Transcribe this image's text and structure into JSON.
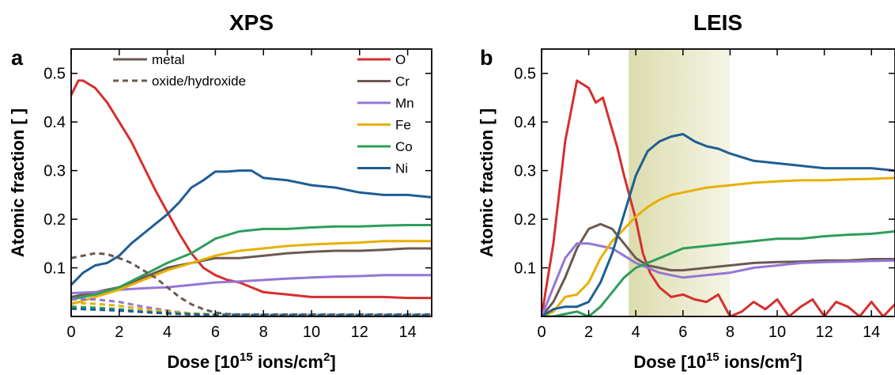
{
  "chart_data": [
    {
      "panel": "a",
      "title": "XPS",
      "type": "line",
      "xlabel_text": "Dose [10",
      "xlabel_exp": "15",
      "xlabel_mid": " ions/cm",
      "xlabel_exp2": "2",
      "xlabel_end": "]",
      "ylabel": "Atomic fraction [ ]",
      "xlim": [
        0,
        15
      ],
      "ylim": [
        0,
        0.55
      ],
      "xticks": [
        0,
        2,
        4,
        6,
        8,
        10,
        12,
        14
      ],
      "yticks": [
        0.1,
        0.2,
        0.3,
        0.4,
        0.5
      ],
      "legend_styles": [
        {
          "label": "metal",
          "dash": "solid"
        },
        {
          "label": "oxide/hydroxide",
          "dash": "dashed"
        }
      ],
      "legend_position": "top-right",
      "series": [
        {
          "name": "O",
          "color": "#d62f2f",
          "dash": "solid",
          "x": [
            0,
            0.3,
            0.5,
            1,
            1.5,
            2,
            2.5,
            3,
            3.5,
            4,
            4.5,
            5,
            5.5,
            6,
            6.5,
            7,
            7.5,
            8,
            9,
            10,
            11,
            12,
            13,
            14,
            15
          ],
          "y": [
            0.455,
            0.485,
            0.485,
            0.47,
            0.44,
            0.4,
            0.36,
            0.31,
            0.26,
            0.215,
            0.17,
            0.13,
            0.1,
            0.085,
            0.075,
            0.07,
            0.06,
            0.05,
            0.045,
            0.04,
            0.04,
            0.04,
            0.04,
            0.038,
            0.038
          ]
        },
        {
          "name": "Cr",
          "color": "#6b5a52",
          "dash": "solid",
          "x": [
            0,
            1,
            2,
            3,
            4,
            5,
            6,
            7,
            8,
            9,
            10,
            11,
            12,
            13,
            14,
            15
          ],
          "y": [
            0.04,
            0.05,
            0.06,
            0.08,
            0.1,
            0.11,
            0.12,
            0.12,
            0.125,
            0.13,
            0.133,
            0.135,
            0.135,
            0.137,
            0.14,
            0.14
          ]
        },
        {
          "name": "Mn",
          "color": "#9476d6",
          "dash": "solid",
          "x": [
            0,
            1,
            2,
            3,
            4,
            5,
            6,
            7,
            8,
            9,
            10,
            11,
            12,
            13,
            14,
            15
          ],
          "y": [
            0.048,
            0.05,
            0.055,
            0.058,
            0.06,
            0.065,
            0.07,
            0.072,
            0.075,
            0.078,
            0.08,
            0.082,
            0.083,
            0.085,
            0.085,
            0.085
          ]
        },
        {
          "name": "Fe",
          "color": "#e8b000",
          "dash": "solid",
          "x": [
            0,
            1,
            2,
            3,
            4,
            5,
            6,
            7,
            8,
            9,
            10,
            11,
            12,
            13,
            14,
            15
          ],
          "y": [
            0.025,
            0.04,
            0.055,
            0.075,
            0.095,
            0.11,
            0.125,
            0.135,
            0.14,
            0.145,
            0.148,
            0.15,
            0.152,
            0.155,
            0.155,
            0.155
          ]
        },
        {
          "name": "Co",
          "color": "#2e9e5b",
          "dash": "solid",
          "x": [
            0,
            1,
            2,
            3,
            4,
            5,
            6,
            7,
            8,
            9,
            10,
            11,
            12,
            13,
            14,
            15
          ],
          "y": [
            0.035,
            0.045,
            0.06,
            0.085,
            0.11,
            0.13,
            0.16,
            0.175,
            0.18,
            0.18,
            0.183,
            0.185,
            0.185,
            0.187,
            0.188,
            0.188
          ]
        },
        {
          "name": "Ni",
          "color": "#1f5e94",
          "dash": "solid",
          "x": [
            0,
            0.5,
            1,
            1.5,
            2,
            2.5,
            3,
            3.5,
            4,
            4.5,
            5,
            5.5,
            6,
            6.5,
            7,
            7.5,
            8,
            9,
            10,
            11,
            12,
            13,
            14,
            15
          ],
          "y": [
            0.065,
            0.09,
            0.105,
            0.11,
            0.125,
            0.15,
            0.17,
            0.19,
            0.21,
            0.235,
            0.265,
            0.28,
            0.298,
            0.298,
            0.3,
            0.3,
            0.285,
            0.28,
            0.27,
            0.265,
            0.255,
            0.25,
            0.25,
            0.245
          ]
        },
        {
          "name": "Cr oxide",
          "color": "#6b5a52",
          "dash": "dashed",
          "x": [
            0,
            0.5,
            1,
            1.5,
            2,
            2.5,
            3,
            3.5,
            4,
            4.5,
            5,
            5.5,
            6,
            6.5,
            7,
            8,
            15
          ],
          "y": [
            0.12,
            0.125,
            0.13,
            0.128,
            0.12,
            0.11,
            0.095,
            0.08,
            0.06,
            0.04,
            0.025,
            0.015,
            0.008,
            0.005,
            0.004,
            0.004,
            0.004
          ]
        },
        {
          "name": "Mn oxide",
          "color": "#9476d6",
          "dash": "dashed",
          "x": [
            0,
            1,
            2,
            3,
            4,
            5,
            6,
            8,
            15
          ],
          "y": [
            0.035,
            0.035,
            0.03,
            0.02,
            0.012,
            0.006,
            0.004,
            0.003,
            0.003
          ]
        },
        {
          "name": "Fe oxide",
          "color": "#e8b000",
          "dash": "dashed",
          "x": [
            0,
            1,
            2,
            3,
            4,
            5,
            6,
            8,
            15
          ],
          "y": [
            0.028,
            0.026,
            0.022,
            0.015,
            0.01,
            0.006,
            0.004,
            0.003,
            0.003
          ]
        },
        {
          "name": "Co oxide",
          "color": "#2e9e5b",
          "dash": "dashed",
          "x": [
            0,
            1,
            2,
            3,
            4,
            5,
            6,
            8,
            15
          ],
          "y": [
            0.02,
            0.018,
            0.015,
            0.01,
            0.007,
            0.005,
            0.004,
            0.003,
            0.003
          ]
        },
        {
          "name": "Ni oxide",
          "color": "#1f5e94",
          "dash": "dashed",
          "x": [
            0,
            1,
            2,
            3,
            4,
            5,
            6,
            8,
            15
          ],
          "y": [
            0.016,
            0.014,
            0.012,
            0.009,
            0.006,
            0.004,
            0.003,
            0.003,
            0.003
          ]
        }
      ]
    },
    {
      "panel": "b",
      "title": "LEIS",
      "type": "line",
      "xlabel_text": "Dose [10",
      "xlabel_exp": "15",
      "xlabel_mid": " ions/cm",
      "xlabel_exp2": "2",
      "xlabel_end": "]",
      "ylabel": "Atomic fraction [ ]",
      "xlim": [
        0,
        15
      ],
      "ylim": [
        0,
        0.55
      ],
      "xticks": [
        0,
        2,
        4,
        6,
        8,
        10,
        12,
        14
      ],
      "yticks": [
        0.1,
        0.2,
        0.3,
        0.4,
        0.5
      ],
      "shaded_region": {
        "x": [
          3.7,
          8.0
        ],
        "color_start": "#dcdcae",
        "color_end": "#f5f5e6"
      },
      "series": [
        {
          "name": "O",
          "color": "#d62f2f",
          "x": [
            0,
            0.5,
            1,
            1.5,
            2,
            2.3,
            2.6,
            2.9,
            3.2,
            3.5,
            4,
            4.3,
            4.6,
            5,
            5.5,
            6,
            6.5,
            7,
            7.5,
            8,
            8.5,
            9,
            9.5,
            10,
            10.5,
            11,
            11.5,
            12,
            12.5,
            13,
            13.5,
            14,
            14.5,
            15
          ],
          "y": [
            0.0,
            0.15,
            0.36,
            0.485,
            0.47,
            0.44,
            0.45,
            0.4,
            0.35,
            0.29,
            0.2,
            0.13,
            0.09,
            0.06,
            0.04,
            0.045,
            0.035,
            0.03,
            0.045,
            0.0,
            0.01,
            0.03,
            0.015,
            0.035,
            0.0,
            0.02,
            0.035,
            0.0,
            0.03,
            0.02,
            0.0,
            0.03,
            0.0,
            0.025
          ]
        },
        {
          "name": "Cr",
          "color": "#6b5a52",
          "x": [
            0,
            0.5,
            1,
            1.5,
            2,
            2.5,
            3,
            3.5,
            4,
            4.5,
            5,
            5.5,
            6,
            7,
            8,
            9,
            10,
            11,
            12,
            13,
            14,
            15
          ],
          "y": [
            0.0,
            0.03,
            0.08,
            0.14,
            0.18,
            0.19,
            0.18,
            0.15,
            0.12,
            0.105,
            0.1,
            0.095,
            0.095,
            0.1,
            0.105,
            0.11,
            0.112,
            0.113,
            0.115,
            0.115,
            0.118,
            0.118
          ]
        },
        {
          "name": "Mn",
          "color": "#9476d6",
          "x": [
            0,
            0.5,
            1,
            1.5,
            2,
            2.5,
            3,
            3.5,
            4,
            4.5,
            5,
            5.5,
            6,
            7,
            8,
            9,
            10,
            11,
            12,
            13,
            14,
            15
          ],
          "y": [
            0.0,
            0.06,
            0.12,
            0.15,
            0.15,
            0.145,
            0.14,
            0.125,
            0.11,
            0.1,
            0.09,
            0.085,
            0.08,
            0.085,
            0.09,
            0.1,
            0.105,
            0.11,
            0.112,
            0.113,
            0.114,
            0.115
          ]
        },
        {
          "name": "Fe",
          "color": "#e8b000",
          "x": [
            0,
            0.5,
            1,
            1.5,
            2,
            2.5,
            3,
            3.5,
            4,
            4.5,
            5,
            5.5,
            6,
            7,
            8,
            9,
            10,
            11,
            12,
            13,
            14,
            15
          ],
          "y": [
            0.0,
            0.01,
            0.04,
            0.045,
            0.07,
            0.12,
            0.155,
            0.18,
            0.205,
            0.225,
            0.24,
            0.25,
            0.255,
            0.265,
            0.27,
            0.275,
            0.278,
            0.28,
            0.28,
            0.282,
            0.283,
            0.285
          ]
        },
        {
          "name": "Co",
          "color": "#2e9e5b",
          "x": [
            0,
            0.5,
            1,
            1.5,
            2,
            2.5,
            3,
            3.5,
            4,
            4.5,
            5,
            5.5,
            6,
            7,
            8,
            9,
            10,
            11,
            12,
            13,
            14,
            15
          ],
          "y": [
            0.0,
            0.0,
            0.005,
            0.01,
            0.0,
            0.02,
            0.05,
            0.08,
            0.1,
            0.11,
            0.12,
            0.13,
            0.14,
            0.145,
            0.15,
            0.155,
            0.16,
            0.16,
            0.165,
            0.168,
            0.17,
            0.175
          ]
        },
        {
          "name": "Ni",
          "color": "#1f5e94",
          "x": [
            0,
            0.5,
            1,
            1.5,
            2,
            2.5,
            3,
            3.5,
            4,
            4.5,
            5,
            5.5,
            6,
            6.5,
            7,
            7.5,
            8,
            9,
            10,
            11,
            12,
            13,
            14,
            15
          ],
          "y": [
            0.0,
            0.015,
            0.02,
            0.02,
            0.03,
            0.07,
            0.13,
            0.21,
            0.29,
            0.34,
            0.36,
            0.37,
            0.375,
            0.36,
            0.35,
            0.345,
            0.335,
            0.32,
            0.315,
            0.31,
            0.305,
            0.305,
            0.305,
            0.3
          ]
        }
      ]
    }
  ]
}
